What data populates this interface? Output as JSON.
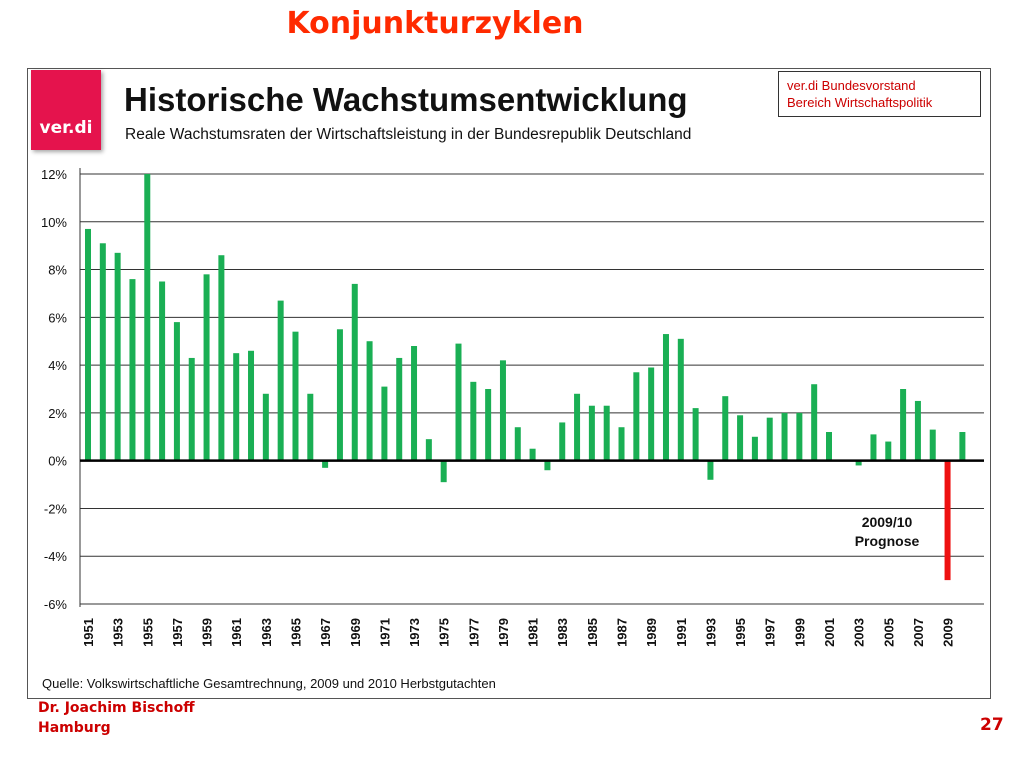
{
  "slide": {
    "title": "Konjunkturzyklen",
    "author_line1": "Dr. Joachim Bischoff",
    "author_line2": "Hamburg",
    "page_number": "27"
  },
  "logo": {
    "text": "ver.di"
  },
  "org_box": {
    "line1": "ver.di Bundesvorstand",
    "line2": "Bereich Wirtschaftspolitik"
  },
  "source": "Quelle: Volkswirtschaftliche Gesamtrechnung, 2009 und 2010 Herbstgutachten",
  "annotation": {
    "line1": "2009/10",
    "line2": "Prognose"
  },
  "colors": {
    "positive": "#1aaf54",
    "forecast": "#ee1111",
    "title": "#ff2a00",
    "accent": "#cc0000",
    "logo": "#e5134d"
  },
  "chart_data": {
    "type": "bar",
    "title": "Historische Wachstumsentwicklung",
    "subtitle": "Reale Wachstumsraten der Wirtschaftsleistung in der Bundesrepublik Deutschland",
    "xlabel": "",
    "ylabel": "",
    "ylim": [
      -6,
      12
    ],
    "yticks": [
      12,
      10,
      8,
      6,
      4,
      2,
      0,
      -2,
      -4,
      -6
    ],
    "ytick_labels": [
      "12%",
      "10%",
      "8%",
      "6%",
      "4%",
      "2%",
      "0%",
      "-2%",
      "-4%",
      "-6%"
    ],
    "grid": true,
    "categories": [
      "1951",
      "1952",
      "1953",
      "1954",
      "1955",
      "1956",
      "1957",
      "1958",
      "1959",
      "1960",
      "1961",
      "1962",
      "1963",
      "1964",
      "1965",
      "1966",
      "1967",
      "1968",
      "1969",
      "1970",
      "1971",
      "1972",
      "1973",
      "1974",
      "1975",
      "1976",
      "1977",
      "1978",
      "1979",
      "1980",
      "1981",
      "1982",
      "1983",
      "1984",
      "1985",
      "1986",
      "1987",
      "1988",
      "1989",
      "1990",
      "1991",
      "1992",
      "1993",
      "1994",
      "1995",
      "1996",
      "1997",
      "1998",
      "1999",
      "2000",
      "2001",
      "2002",
      "2003",
      "2004",
      "2005",
      "2006",
      "2007",
      "2008",
      "2009",
      "2010"
    ],
    "xtick_labels": [
      "1951",
      "1953",
      "1955",
      "1957",
      "1959",
      "1961",
      "1963",
      "1965",
      "1967",
      "1969",
      "1971",
      "1973",
      "1975",
      "1977",
      "1979",
      "1981",
      "1983",
      "1985",
      "1987",
      "1989",
      "1991",
      "1993",
      "1995",
      "1997",
      "1999",
      "2001",
      "2003",
      "2005",
      "2007",
      "2009"
    ],
    "values": [
      9.7,
      9.1,
      8.7,
      7.6,
      12.0,
      7.5,
      5.8,
      4.3,
      7.8,
      8.6,
      4.5,
      4.6,
      2.8,
      6.7,
      5.4,
      2.8,
      -0.3,
      5.5,
      7.4,
      5.0,
      3.1,
      4.3,
      4.8,
      0.9,
      -0.9,
      4.9,
      3.3,
      3.0,
      4.2,
      1.4,
      0.5,
      -0.4,
      1.6,
      2.8,
      2.3,
      2.3,
      1.4,
      3.7,
      3.9,
      5.3,
      5.1,
      2.2,
      -0.8,
      2.7,
      1.9,
      1.0,
      1.8,
      2.0,
      2.0,
      3.2,
      1.2,
      0.0,
      -0.2,
      1.1,
      0.8,
      3.0,
      2.5,
      1.3,
      -5.0,
      1.2
    ],
    "forecast_categories": [
      "2009"
    ]
  }
}
